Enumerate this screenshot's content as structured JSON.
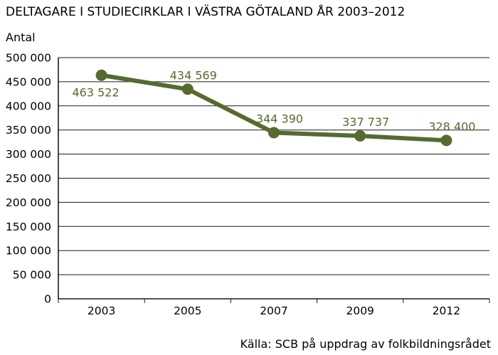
{
  "chart_data": {
    "type": "line",
    "title": "DELTAGARE I STUDIECIRKLAR I VÄSTRA GÖTALAND ÅR 2003–2012",
    "ylabel": "Antal",
    "xlabel": "",
    "source": "Källa: SCB på uppdrag av folkbildningsrådet",
    "categories": [
      "2003",
      "2005",
      "2007",
      "2009",
      "2012"
    ],
    "series": [
      {
        "values": [
          463522,
          434569,
          344390,
          337737,
          328400
        ],
        "labels": [
          "463 522",
          "434 569",
          "344 390",
          "337 737",
          "328 400"
        ]
      }
    ],
    "ylim": [
      0,
      500000
    ],
    "yticks": [
      0,
      50000,
      100000,
      150000,
      200000,
      250000,
      300000,
      350000,
      400000,
      450000,
      500000
    ],
    "ytick_labels": [
      "0",
      "50 000",
      "100 000",
      "150 000",
      "200 000",
      "250 000",
      "300 000",
      "350 000",
      "400 000",
      "450 000",
      "500 000"
    ],
    "grid": true,
    "line_color": "#556b2f",
    "grid_color": "#1a1a1a"
  }
}
